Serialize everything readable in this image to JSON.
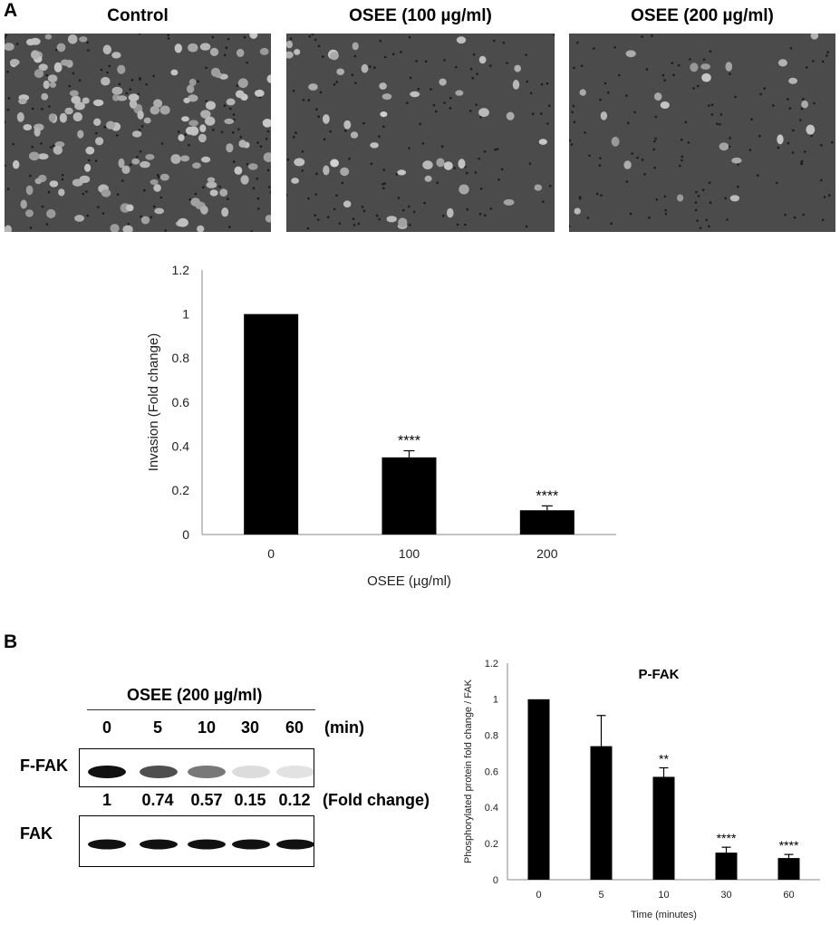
{
  "panel_a": {
    "letter": "A",
    "image_titles": [
      "Control",
      "OSEE (100 µg/ml)",
      "OSEE (200 µg/ml)"
    ]
  },
  "panel_b": {
    "letter": "B",
    "blot": {
      "treatment_label": "OSEE (200 µg/ml)",
      "time_points": [
        "0",
        "5",
        "10",
        "30",
        "60"
      ],
      "time_unit": "(min)",
      "row_labels": [
        "F-FAK",
        "FAK"
      ],
      "fold_values": [
        "1",
        "0.74",
        "0.57",
        "0.15",
        "0.12"
      ],
      "fold_label": "(Fold change)",
      "band_intensity": {
        "f_fak": [
          1,
          0.74,
          0.57,
          0.15,
          0.12
        ],
        "fak": [
          1,
          1,
          1,
          1,
          1
        ]
      }
    }
  },
  "chart_data": [
    {
      "type": "bar",
      "title": "",
      "categories": [
        "0",
        "100",
        "200"
      ],
      "values": [
        1.0,
        0.35,
        0.11
      ],
      "errors": [
        0.0,
        0.03,
        0.02
      ],
      "annotations": [
        "",
        "****",
        "****"
      ],
      "xlabel": "OSEE  (µg/ml)",
      "ylabel": "Invasion (Fold change)",
      "ylim": [
        0,
        1.2
      ],
      "yticks": [
        "0",
        "0.2",
        "0.4",
        "0.6",
        "0.8",
        "1",
        "1.2"
      ],
      "bar_color": "#000000",
      "grid": false
    },
    {
      "type": "bar",
      "title": "P-FAK",
      "categories": [
        "0",
        "5",
        "10",
        "30",
        "60"
      ],
      "values": [
        1.0,
        0.74,
        0.57,
        0.15,
        0.12
      ],
      "errors": [
        0.0,
        0.17,
        0.05,
        0.03,
        0.02
      ],
      "annotations": [
        "",
        "",
        "**",
        "****",
        "****"
      ],
      "xlabel": "Time (minutes)",
      "ylabel": "Phosphorylated protein fold change / FAK",
      "ylim": [
        0,
        1.2
      ],
      "yticks": [
        "0",
        "0.2",
        "0.4",
        "0.6",
        "0.8",
        "1",
        "1.2"
      ],
      "bar_color": "#000000",
      "grid": false
    }
  ]
}
